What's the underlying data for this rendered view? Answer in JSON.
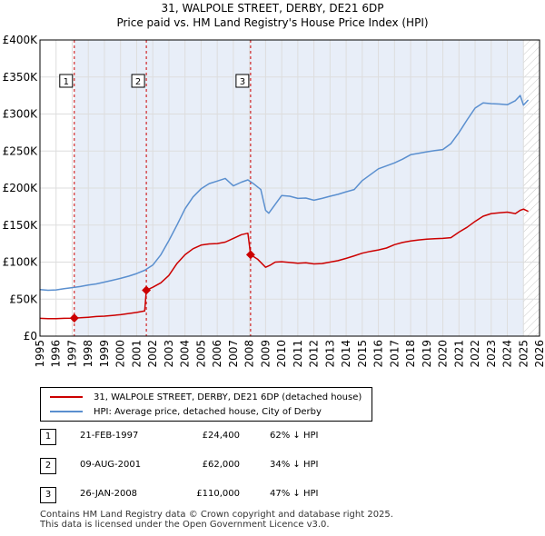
{
  "chart_data": {
    "type": "line",
    "title": "31, WALPOLE STREET, DERBY, DE21 6DP",
    "subtitle": "Price paid vs. HM Land Registry's House Price Index (HPI)",
    "xlim": [
      1995,
      2026
    ],
    "ylim": [
      0,
      400000
    ],
    "x_ticks": [
      "1995",
      "1996",
      "1997",
      "1998",
      "1999",
      "2000",
      "2001",
      "2002",
      "2003",
      "2004",
      "2005",
      "2006",
      "2007",
      "2008",
      "2009",
      "2010",
      "2011",
      "2012",
      "2013",
      "2014",
      "2015",
      "2016",
      "2017",
      "2018",
      "2019",
      "2020",
      "2021",
      "2022",
      "2023",
      "2024",
      "2025",
      "2026"
    ],
    "y_ticks": [
      {
        "value": 0,
        "label": "£0"
      },
      {
        "value": 50000,
        "label": "£50K"
      },
      {
        "value": 100000,
        "label": "£100K"
      },
      {
        "value": 150000,
        "label": "£150K"
      },
      {
        "value": 200000,
        "label": "£200K"
      },
      {
        "value": 250000,
        "label": "£250K"
      },
      {
        "value": 300000,
        "label": "£300K"
      },
      {
        "value": 350000,
        "label": "£350K"
      },
      {
        "value": 400000,
        "label": "£400K"
      }
    ],
    "series": [
      {
        "name": "31, WALPOLE STREET, DERBY, DE21 6DP (detached house)",
        "color": "#cc0000",
        "x": [
          1995.0,
          1995.5,
          1996.0,
          1996.5,
          1997.0,
          1997.13,
          1997.5,
          1998.0,
          1998.5,
          1999.0,
          1999.5,
          2000.0,
          2000.5,
          2001.0,
          2001.5,
          2001.6,
          2002.0,
          2002.5,
          2003.0,
          2003.5,
          2004.0,
          2004.5,
          2005.0,
          2005.5,
          2006.0,
          2006.5,
          2007.0,
          2007.5,
          2007.9,
          2008.07,
          2008.5,
          2009.0,
          2009.3,
          2009.6,
          2010.0,
          2010.5,
          2011.0,
          2011.5,
          2012.0,
          2012.5,
          2013.0,
          2013.5,
          2014.0,
          2014.5,
          2015.0,
          2015.5,
          2016.0,
          2016.5,
          2017.0,
          2017.5,
          2018.0,
          2018.5,
          2019.0,
          2019.5,
          2020.0,
          2020.5,
          2021.0,
          2021.5,
          2022.0,
          2022.5,
          2023.0,
          2023.5,
          2024.0,
          2024.5,
          2024.8,
          2025.0,
          2025.3
        ],
        "values": [
          24000,
          23500,
          23500,
          24000,
          24200,
          24400,
          24800,
          25500,
          26500,
          27000,
          28000,
          29000,
          30500,
          32000,
          34000,
          62000,
          66000,
          72000,
          82000,
          98000,
          110000,
          118000,
          123000,
          124500,
          125000,
          127000,
          132000,
          137000,
          139000,
          110000,
          104000,
          93000,
          96000,
          100000,
          100500,
          99500,
          98500,
          99000,
          97500,
          98000,
          100000,
          102000,
          105000,
          108500,
          112000,
          114500,
          116500,
          119000,
          123500,
          126500,
          128500,
          130000,
          131000,
          131500,
          132000,
          133000,
          140500,
          147000,
          155000,
          162000,
          165500,
          166500,
          167500,
          165500,
          170000,
          171500,
          168500
        ]
      },
      {
        "name": "HPI: Average price, detached house, City of Derby",
        "color": "#5a8fcf",
        "x": [
          1995.0,
          1995.5,
          1996.0,
          1996.5,
          1997.0,
          1997.5,
          1998.0,
          1998.5,
          1999.0,
          1999.5,
          2000.0,
          2000.5,
          2001.0,
          2001.5,
          2002.0,
          2002.5,
          2003.0,
          2003.5,
          2004.0,
          2004.5,
          2005.0,
          2005.5,
          2006.0,
          2006.5,
          2007.0,
          2007.5,
          2007.9,
          2008.3,
          2008.7,
          2009.0,
          2009.2,
          2009.6,
          2010.0,
          2010.5,
          2011.0,
          2011.5,
          2012.0,
          2012.5,
          2013.0,
          2013.5,
          2014.0,
          2014.5,
          2015.0,
          2015.5,
          2016.0,
          2016.5,
          2017.0,
          2017.5,
          2018.0,
          2018.5,
          2019.0,
          2019.5,
          2020.0,
          2020.5,
          2021.0,
          2021.5,
          2022.0,
          2022.5,
          2023.0,
          2023.5,
          2024.0,
          2024.5,
          2024.8,
          2025.0,
          2025.3
        ],
        "values": [
          63000,
          62000,
          62500,
          64000,
          65500,
          67000,
          69000,
          70500,
          73000,
          75500,
          78000,
          81000,
          84500,
          89000,
          96000,
          110000,
          129000,
          150000,
          172000,
          188000,
          199000,
          206000,
          209500,
          213000,
          203000,
          208000,
          211000,
          205000,
          198000,
          170000,
          166000,
          178000,
          190000,
          189000,
          186000,
          186500,
          183500,
          186000,
          189000,
          191500,
          195000,
          198000,
          210000,
          218000,
          226000,
          230000,
          234000,
          239000,
          245000,
          247000,
          249000,
          250500,
          252000,
          260000,
          275000,
          292000,
          308000,
          315000,
          314000,
          313500,
          312500,
          318000,
          325000,
          312000,
          319000
        ]
      }
    ],
    "markers": [
      {
        "label": "1",
        "x": 1997.13,
        "value": 24400
      },
      {
        "label": "2",
        "x": 2001.6,
        "value": 62000
      },
      {
        "label": "3",
        "x": 2008.07,
        "value": 110000
      }
    ]
  },
  "legend": {
    "items": [
      {
        "label": "31, WALPOLE STREET, DERBY, DE21 6DP (detached house)",
        "color": "#cc0000"
      },
      {
        "label": "HPI: Average price, detached house, City of Derby",
        "color": "#5a8fcf"
      }
    ]
  },
  "sales": [
    {
      "num": "1",
      "date": "21-FEB-1997",
      "price": "£24,400",
      "hpi": "62% ↓ HPI"
    },
    {
      "num": "2",
      "date": "09-AUG-2001",
      "price": "£62,000",
      "hpi": "34% ↓ HPI"
    },
    {
      "num": "3",
      "date": "26-JAN-2008",
      "price": "£110,000",
      "hpi": "47% ↓ HPI"
    }
  ],
  "footer": {
    "line1": "Contains HM Land Registry data © Crown copyright and database right 2025.",
    "line2": "This data is licensed under the Open Government Licence v3.0."
  }
}
